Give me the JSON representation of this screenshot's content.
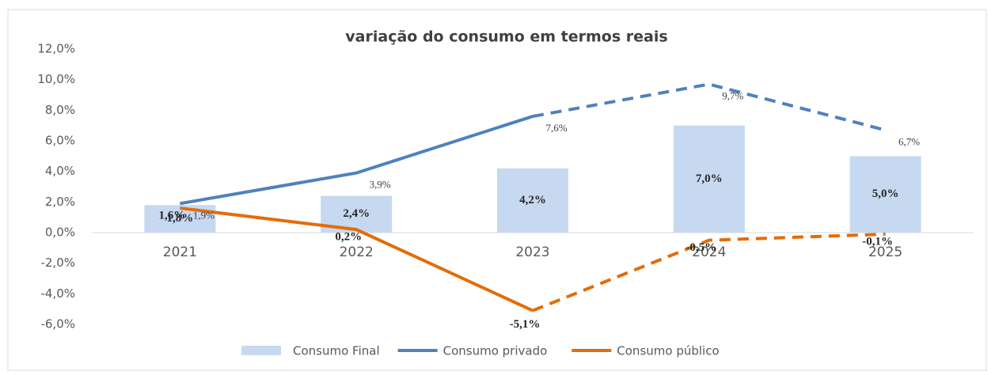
{
  "chart_data": {
    "type": "bar-line",
    "title": "variação do consumo em termos reais",
    "categories": [
      "2021",
      "2022",
      "2023",
      "2024",
      "2025"
    ],
    "series": [
      {
        "name": "Consumo Final",
        "type": "bar",
        "color": "#c6d9f1",
        "values": [
          1.8,
          2.4,
          4.2,
          7.0,
          5.0
        ],
        "value_labels": [
          "1,8%",
          "2,4%",
          "4,2%",
          "7,0%",
          "5,0%"
        ]
      },
      {
        "name": "Consumo privado",
        "type": "line",
        "color": "#4f81bd",
        "dashed_from": 2,
        "values": [
          1.9,
          3.9,
          7.6,
          9.7,
          6.7
        ],
        "value_labels": [
          "1,9%",
          "3,9%",
          "7,6%",
          "9,7%",
          "6,7%"
        ]
      },
      {
        "name": "Consumo público",
        "type": "line",
        "color": "#e36c0a",
        "dashed_from": 2,
        "values": [
          1.6,
          0.2,
          -5.1,
          -0.5,
          -0.1
        ],
        "value_labels": [
          "1,6%",
          "0,2%",
          "-5,1%",
          "-0,5%",
          "-0,1%"
        ]
      }
    ],
    "ylim": [
      -6,
      12
    ],
    "yticks": [
      {
        "value": -6,
        "label": "-6,0%"
      },
      {
        "value": -4,
        "label": "-4,0%"
      },
      {
        "value": -2,
        "label": "-2,0%"
      },
      {
        "value": 0,
        "label": "0,0%"
      },
      {
        "value": 2,
        "label": "2,0%"
      },
      {
        "value": 4,
        "label": "4,0%"
      },
      {
        "value": 6,
        "label": "6,0%"
      },
      {
        "value": 8,
        "label": "8,0%"
      },
      {
        "value": 10,
        "label": "10,0%"
      },
      {
        "value": 12,
        "label": "12,0%"
      }
    ],
    "grid": false
  }
}
